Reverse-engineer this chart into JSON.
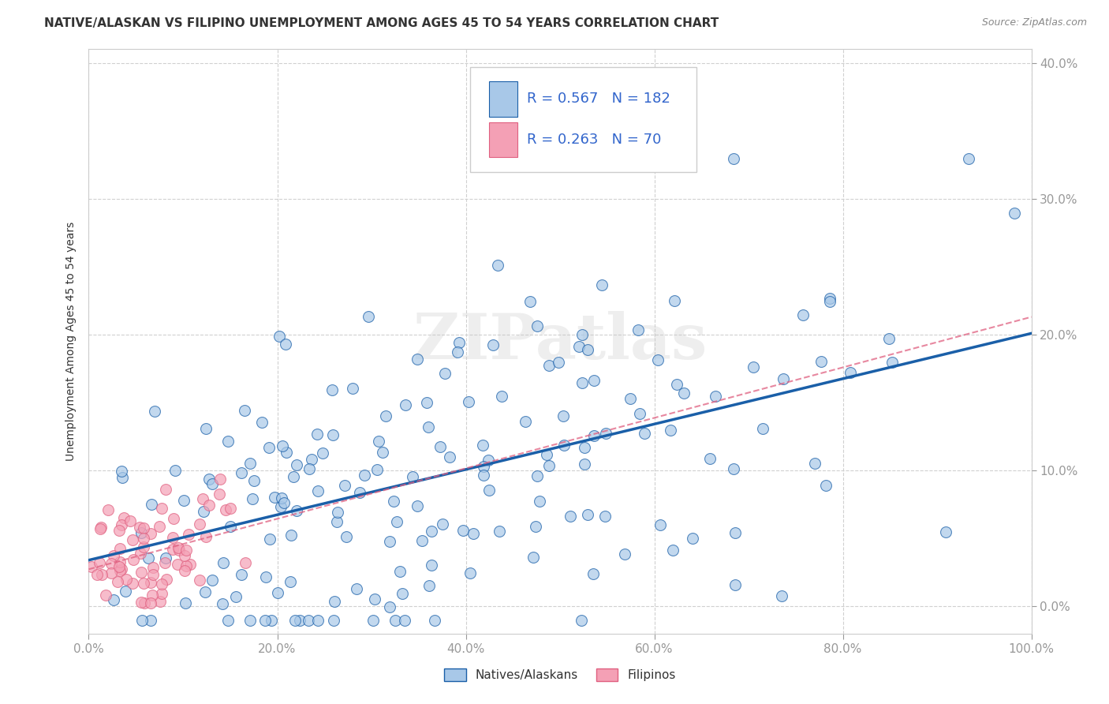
{
  "title": "NATIVE/ALASKAN VS FILIPINO UNEMPLOYMENT AMONG AGES 45 TO 54 YEARS CORRELATION CHART",
  "source": "Source: ZipAtlas.com",
  "xlabel_ticks": [
    "0.0%",
    "20.0%",
    "40.0%",
    "60.0%",
    "80.0%",
    "100.0%"
  ],
  "ylabel_ticks_right": [
    "40.0%",
    "30.0%",
    "20.0%",
    "10.0%",
    "0.0%"
  ],
  "ylabel_ticks_left": [
    "",
    "",
    "",
    "",
    ""
  ],
  "ylabel_label": "Unemployment Among Ages 45 to 54 years",
  "legend_label1": "Natives/Alaskans",
  "legend_label2": "Filipinos",
  "R1": 0.567,
  "N1": 182,
  "R2": 0.263,
  "N2": 70,
  "color_blue": "#a8c8e8",
  "color_pink": "#f4a0b5",
  "line_blue": "#1a5fa8",
  "line_pink": "#e06080",
  "title_fontsize": 11,
  "source_fontsize": 9,
  "axis_label_fontsize": 10,
  "tick_fontsize": 11,
  "legend_fontsize": 13,
  "watermark_text": "ZIPatlas",
  "watermark_color": "#c8c8c8",
  "background_color": "#ffffff",
  "grid_color": "#d0d0d0",
  "tick_color": "#3366cc",
  "text_color_blue": "#3366cc",
  "text_color_red": "#cc2222"
}
